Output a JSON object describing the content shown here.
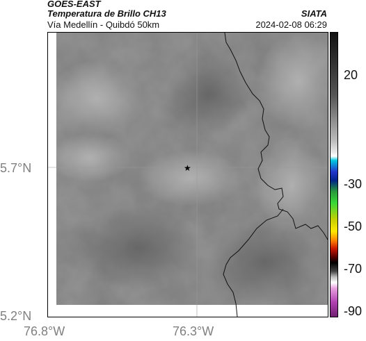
{
  "header": {
    "satellite": "GOES-EAST",
    "product": "Temperatura de Brillo CH13",
    "route": "Vía Medellín - Quibdó 50km",
    "org": "SIATA",
    "datetime": "2024-02-08 06:29"
  },
  "axes": {
    "lat_labels": [
      "5.7°N",
      "5.2°N"
    ],
    "lon_labels": [
      "76.8°W",
      "76.3°W"
    ]
  },
  "colorbar": {
    "ticks": [
      "20",
      "-30",
      "-50",
      "-70",
      "-90"
    ]
  },
  "colors": {
    "border": "#000000",
    "grid": "#9a9a9a",
    "label_gray": "#808080"
  }
}
